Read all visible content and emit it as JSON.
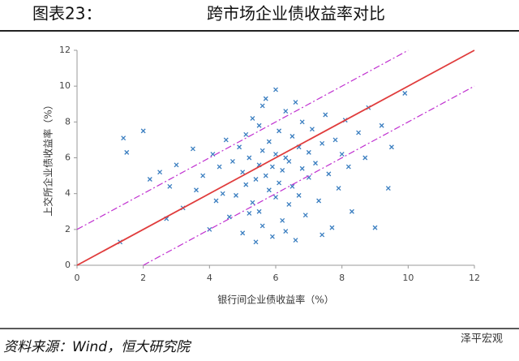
{
  "chart_data": {
    "type": "scatter",
    "title": "图表23：",
    "subtitle": "跨市场企业债收益率对比",
    "x_label": "银行间企业债收益率（%）",
    "y_label": "上交所企业债收益率（%）",
    "source": "资料来源：Wind，恒大研究院",
    "watermark": "泽平宏观",
    "xlim": [
      0,
      12
    ],
    "ylim": [
      0,
      12
    ],
    "xticks": [
      0,
      2,
      4,
      6,
      8,
      10,
      12
    ],
    "yticks": [
      0,
      2,
      4,
      6,
      8,
      10,
      12
    ],
    "color": "#3a7ec0",
    "x": [
      1.4,
      1.5,
      1.3,
      2.0,
      2.2,
      2.5,
      2.7,
      2.8,
      3.0,
      3.2,
      3.5,
      3.6,
      3.8,
      4.0,
      4.1,
      4.2,
      4.3,
      4.4,
      4.5,
      4.6,
      4.7,
      4.8,
      4.9,
      5.0,
      5.0,
      5.1,
      5.1,
      5.2,
      5.2,
      5.3,
      5.3,
      5.4,
      5.4,
      5.5,
      5.5,
      5.5,
      5.6,
      5.6,
      5.7,
      5.7,
      5.8,
      5.8,
      5.9,
      5.9,
      6.0,
      6.0,
      6.0,
      6.1,
      6.1,
      6.2,
      6.2,
      6.3,
      6.3,
      6.4,
      6.4,
      6.5,
      6.5,
      6.6,
      6.6,
      6.7,
      6.7,
      6.8,
      6.8,
      6.9,
      7.0,
      7.0,
      7.1,
      7.2,
      7.3,
      7.4,
      7.5,
      7.6,
      7.7,
      7.8,
      7.9,
      8.0,
      8.1,
      8.2,
      8.3,
      8.5,
      8.7,
      8.8,
      9.0,
      9.2,
      9.4,
      9.5,
      9.9,
      7.4,
      6.3,
      5.6
    ],
    "y": [
      7.1,
      6.3,
      1.3,
      7.5,
      4.8,
      5.2,
      2.6,
      4.4,
      5.6,
      3.2,
      6.5,
      4.2,
      5.0,
      2.0,
      6.2,
      3.6,
      5.5,
      4.0,
      7.0,
      2.7,
      5.8,
      3.9,
      6.6,
      1.8,
      5.2,
      4.5,
      7.3,
      2.9,
      6.0,
      3.5,
      8.2,
      4.8,
      1.3,
      5.6,
      7.8,
      3.0,
      6.4,
      2.2,
      5.0,
      9.3,
      4.2,
      6.9,
      5.5,
      1.6,
      9.8,
      3.8,
      6.2,
      4.6,
      7.5,
      5.3,
      2.5,
      8.6,
      6.0,
      3.4,
      5.8,
      7.2,
      4.4,
      9.1,
      1.4,
      6.6,
      3.9,
      5.4,
      8.0,
      2.8,
      6.3,
      4.9,
      7.6,
      5.7,
      3.6,
      6.8,
      8.4,
      5.1,
      2.1,
      7.0,
      4.3,
      6.2,
      8.1,
      5.5,
      3.0,
      7.4,
      6.0,
      8.8,
      2.1,
      7.8,
      4.3,
      6.6,
      9.6,
      1.7,
      1.9,
      8.9
    ],
    "lines": [
      {
        "x": [
          0,
          12
        ],
        "y": [
          0,
          12
        ],
        "color": "#e03c3c",
        "dashed": false
      },
      {
        "x": [
          0,
          10
        ],
        "y": [
          2,
          12
        ],
        "color": "#c030d0",
        "dashed": true
      },
      {
        "x": [
          2,
          12
        ],
        "y": [
          0,
          10
        ],
        "color": "#c030d0",
        "dashed": true
      }
    ]
  }
}
